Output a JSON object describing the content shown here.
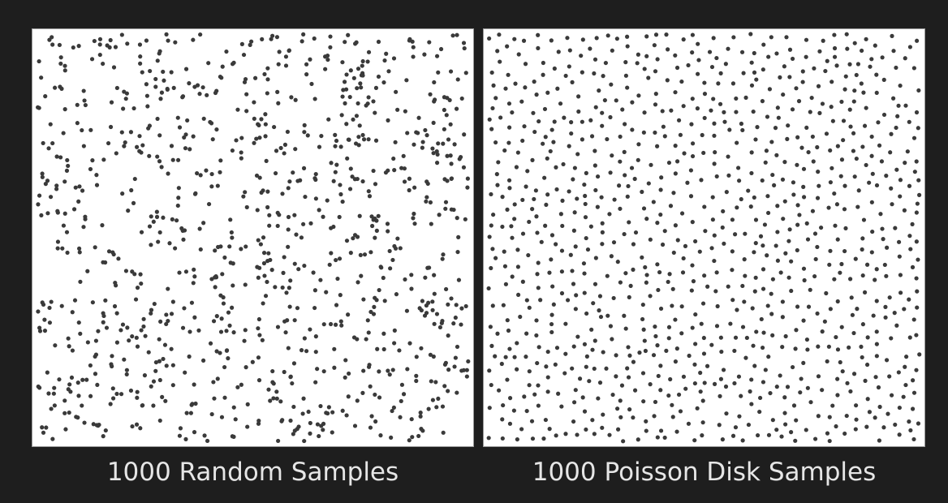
{
  "panels": [
    {
      "id": "random",
      "caption": "1000 Random Samples",
      "sample_count": 1000,
      "method": "uniform-random"
    },
    {
      "id": "poisson",
      "caption": "1000 Poisson Disk Samples",
      "sample_count": 1000,
      "method": "poisson-disk"
    }
  ],
  "colors": {
    "background": "#1e1e1e",
    "panel": "#ffffff",
    "border": "#9a9a9a",
    "dot": "#3a3a3a",
    "caption": "#e6e6e6"
  }
}
